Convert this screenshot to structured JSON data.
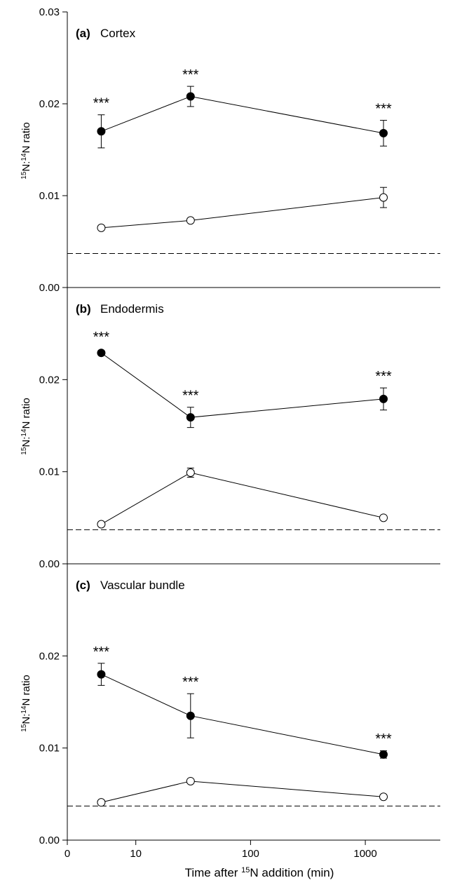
{
  "chart_data": [
    {
      "type": "line",
      "panel_letter": "(a)",
      "panel_name": "Cortex",
      "ylabel_pre": "15",
      "ylabel_mid": "N:",
      "ylabel_sup2": "14",
      "ylabel_post": "N ratio",
      "yticks": [
        "0.00",
        "0.01",
        "0.02",
        "0.03"
      ],
      "ylim": [
        0,
        0.03
      ],
      "x_scale": "log",
      "baseline": 0.0037,
      "x": [
        5,
        30,
        1440
      ],
      "series": [
        {
          "marker": "filled",
          "values": [
            0.017,
            0.0208,
            0.0168
          ],
          "errors": [
            0.0018,
            0.0011,
            0.0014
          ],
          "labels": [
            "***",
            "***",
            "***"
          ]
        },
        {
          "marker": "open",
          "values": [
            0.0065,
            0.0073,
            0.0098
          ],
          "errors": [
            0.0002,
            0.0002,
            0.0011
          ]
        }
      ]
    },
    {
      "type": "line",
      "panel_letter": "(b)",
      "panel_name": "Endodermis",
      "ylabel_pre": "15",
      "ylabel_mid": "N:",
      "ylabel_sup2": "14",
      "ylabel_post": "N ratio",
      "yticks": [
        "0.00",
        "0.01",
        "0.02"
      ],
      "ylim": [
        0,
        0.03
      ],
      "x_scale": "log",
      "baseline": 0.0037,
      "x": [
        5,
        30,
        1440
      ],
      "series": [
        {
          "marker": "filled",
          "values": [
            0.0229,
            0.0159,
            0.0179
          ],
          "errors": [
            0.0003,
            0.0011,
            0.0012
          ],
          "labels": [
            "***",
            "***",
            "***"
          ]
        },
        {
          "marker": "open",
          "values": [
            0.0043,
            0.0099,
            0.005
          ],
          "errors": [
            0.0002,
            0.0005,
            0.0002
          ]
        }
      ]
    },
    {
      "type": "line",
      "panel_letter": "(c)",
      "panel_name": "Vascular bundle",
      "ylabel_pre": "15",
      "ylabel_mid": "N:",
      "ylabel_sup2": "14",
      "ylabel_post": "N ratio",
      "yticks": [
        "0.00",
        "0.01",
        "0.02"
      ],
      "ylim": [
        0,
        0.03
      ],
      "x_scale": "log",
      "baseline": 0.0037,
      "x": [
        5,
        30,
        1440
      ],
      "xticks": [
        "0",
        "10",
        "100",
        "1000"
      ],
      "xlabel_pre": "Time after ",
      "xlabel_sup": "15",
      "xlabel_post": "N addition (min)",
      "series": [
        {
          "marker": "filled",
          "values": [
            0.018,
            0.0135,
            0.0093
          ],
          "errors": [
            0.0012,
            0.0024,
            0.0004
          ],
          "labels": [
            "***",
            "***",
            "***"
          ]
        },
        {
          "marker": "open",
          "values": [
            0.0041,
            0.0064,
            0.0047
          ],
          "errors": [
            0.0002,
            0.0002,
            0.0002
          ]
        }
      ]
    }
  ]
}
